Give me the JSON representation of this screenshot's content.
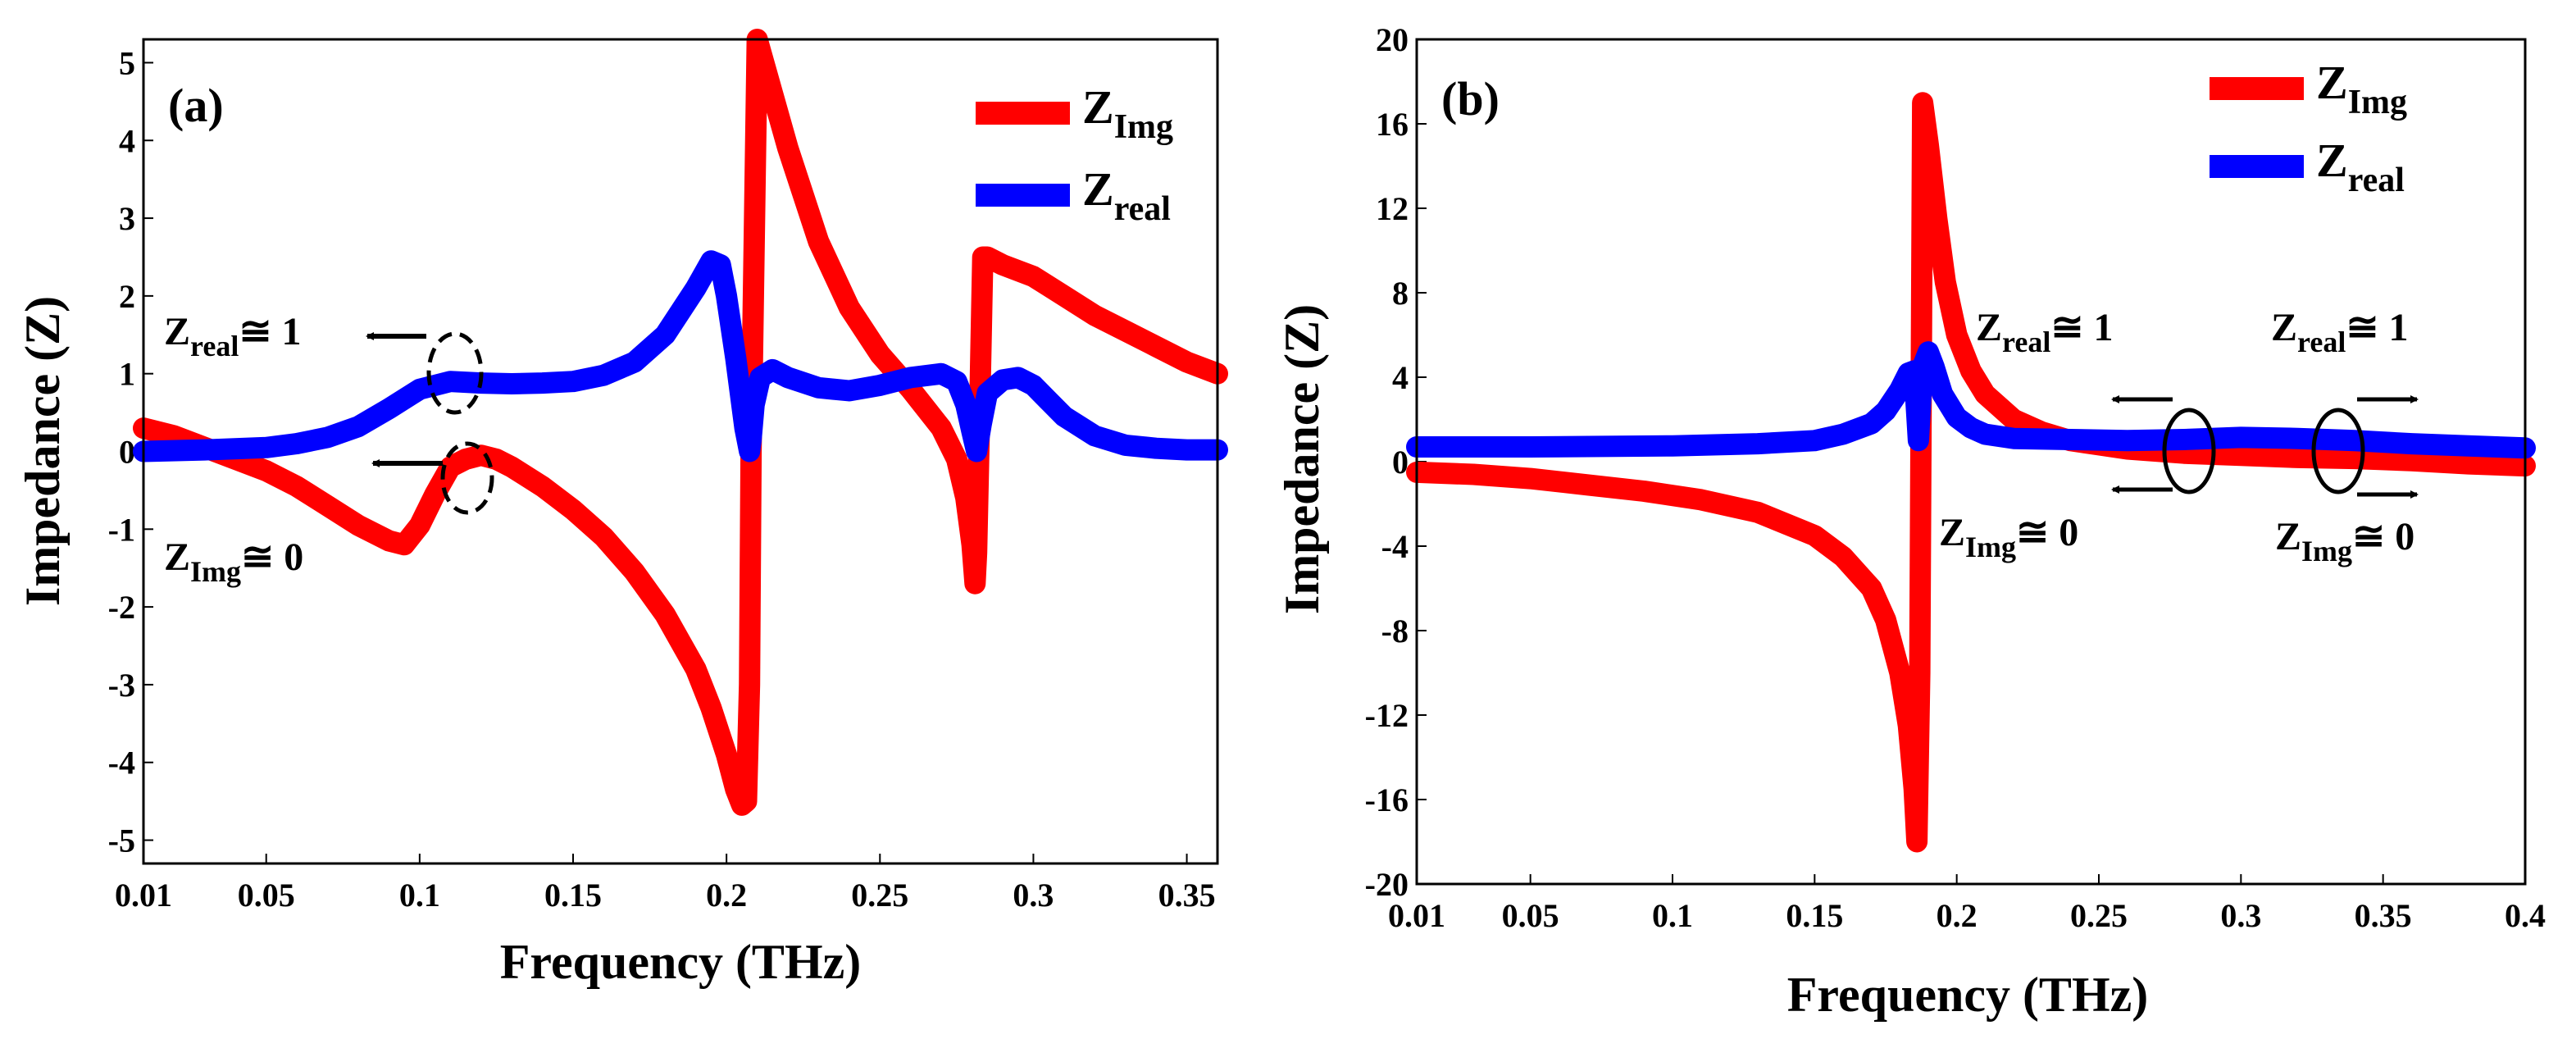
{
  "chart_data": [
    {
      "type": "line",
      "panel_label": "(a)",
      "xlabel": "Frequency (THz)",
      "ylabel": "Impedance (Z)",
      "xlim": [
        0.01,
        0.36
      ],
      "ylim": [
        -5.3,
        5.3
      ],
      "xticks": [
        "0.01",
        "0.05",
        "0.1",
        "0.15",
        "0.2",
        "0.25",
        "0.3",
        "0.35"
      ],
      "xtick_values": [
        0.01,
        0.05,
        0.1,
        0.15,
        0.2,
        0.25,
        0.3,
        0.35
      ],
      "yticks": [
        "5",
        "4",
        "3",
        "2",
        "1",
        "0",
        "-1",
        "-2",
        "-3",
        "-4",
        "-5"
      ],
      "ytick_values": [
        5,
        4,
        3,
        2,
        1,
        0,
        -1,
        -2,
        -3,
        -4,
        -5
      ],
      "legend_position": "top-right",
      "series": [
        {
          "name": "Z_Img",
          "legend_main": "Z",
          "legend_sub": "Img",
          "color": "#ff0000",
          "x": [
            0.01,
            0.02,
            0.03,
            0.04,
            0.05,
            0.06,
            0.07,
            0.08,
            0.09,
            0.095,
            0.1,
            0.105,
            0.11,
            0.115,
            0.12,
            0.125,
            0.13,
            0.14,
            0.15,
            0.16,
            0.17,
            0.18,
            0.19,
            0.195,
            0.2,
            0.203,
            0.205,
            0.2065,
            0.2075,
            0.208,
            0.21,
            0.215,
            0.22,
            0.23,
            0.24,
            0.25,
            0.26,
            0.27,
            0.275,
            0.278,
            0.28,
            0.281,
            0.2815,
            0.2825,
            0.2835,
            0.285,
            0.29,
            0.3,
            0.31,
            0.32,
            0.33,
            0.34,
            0.35,
            0.36
          ],
          "y": [
            0.3,
            0.2,
            0.05,
            -0.1,
            -0.25,
            -0.45,
            -0.7,
            -0.95,
            -1.15,
            -1.2,
            -0.95,
            -0.55,
            -0.2,
            -0.1,
            -0.05,
            -0.1,
            -0.2,
            -0.45,
            -0.75,
            -1.1,
            -1.55,
            -2.1,
            -2.8,
            -3.3,
            -3.9,
            -4.35,
            -4.55,
            -4.5,
            -3.0,
            0.0,
            5.3,
            4.6,
            3.9,
            2.7,
            1.85,
            1.25,
            0.8,
            0.3,
            -0.1,
            -0.6,
            -1.2,
            -1.7,
            -1.3,
            0.5,
            2.5,
            2.5,
            2.4,
            2.25,
            2.0,
            1.75,
            1.55,
            1.35,
            1.15,
            1.0
          ]
        },
        {
          "name": "Z_real",
          "legend_main": "Z",
          "legend_sub": "real",
          "color": "#0000ff",
          "x": [
            0.01,
            0.03,
            0.05,
            0.06,
            0.07,
            0.08,
            0.09,
            0.1,
            0.11,
            0.12,
            0.13,
            0.14,
            0.15,
            0.16,
            0.17,
            0.18,
            0.19,
            0.195,
            0.198,
            0.2,
            0.203,
            0.206,
            0.2075,
            0.208,
            0.209,
            0.211,
            0.215,
            0.22,
            0.23,
            0.24,
            0.25,
            0.26,
            0.27,
            0.275,
            0.278,
            0.28,
            0.2815,
            0.283,
            0.285,
            0.29,
            0.295,
            0.3,
            0.305,
            0.31,
            0.32,
            0.33,
            0.34,
            0.35,
            0.36
          ],
          "y": [
            0.0,
            0.02,
            0.05,
            0.1,
            0.18,
            0.32,
            0.55,
            0.8,
            0.9,
            0.88,
            0.87,
            0.88,
            0.9,
            0.98,
            1.15,
            1.5,
            2.1,
            2.45,
            2.4,
            2.0,
            1.2,
            0.3,
            0.0,
            0.15,
            0.6,
            0.95,
            1.05,
            0.95,
            0.82,
            0.78,
            0.85,
            0.95,
            1.0,
            0.9,
            0.6,
            0.25,
            0.0,
            0.35,
            0.75,
            0.92,
            0.95,
            0.85,
            0.65,
            0.45,
            0.2,
            0.08,
            0.04,
            0.02,
            0.02
          ]
        }
      ],
      "annotations": [
        {
          "main": "Z",
          "sub": "real",
          "rel": "≅ 1"
        },
        {
          "main": "Z",
          "sub": "Img",
          "rel": "≅ 0"
        }
      ]
    },
    {
      "type": "line",
      "panel_label": "(b)",
      "xlabel": "Frequency (THz)",
      "ylabel": "Impedance (Z)",
      "xlim": [
        0.01,
        0.4
      ],
      "ylim": [
        -20,
        20
      ],
      "xticks": [
        "0.01",
        "0.05",
        "0.1",
        "0.15",
        "0.2",
        "0.25",
        "0.3",
        "0.35",
        "0.4"
      ],
      "xtick_values": [
        0.01,
        0.05,
        0.1,
        0.15,
        0.2,
        0.25,
        0.3,
        0.35,
        0.4
      ],
      "yticks": [
        "20",
        "16",
        "12",
        "8",
        "4",
        "0",
        "-4",
        "-8",
        "-12",
        "-16",
        "-20"
      ],
      "ytick_values": [
        20,
        16,
        12,
        8,
        4,
        0,
        -4,
        -8,
        -12,
        -16,
        -20
      ],
      "legend_position": "top-right",
      "series": [
        {
          "name": "Z_Img",
          "legend_main": "Z",
          "legend_sub": "Img",
          "color": "#ff0000",
          "x": [
            0.01,
            0.03,
            0.05,
            0.07,
            0.09,
            0.11,
            0.13,
            0.15,
            0.16,
            0.17,
            0.175,
            0.18,
            0.183,
            0.185,
            0.186,
            0.187,
            0.188,
            0.19,
            0.193,
            0.196,
            0.2,
            0.205,
            0.21,
            0.22,
            0.23,
            0.24,
            0.25,
            0.26,
            0.28,
            0.3,
            0.32,
            0.34,
            0.36,
            0.38,
            0.4
          ],
          "y": [
            -0.5,
            -0.6,
            -0.8,
            -1.1,
            -1.4,
            -1.8,
            -2.4,
            -3.5,
            -4.5,
            -6.0,
            -7.5,
            -10.0,
            -12.5,
            -15.5,
            -18.0,
            -10.0,
            17.0,
            15.0,
            11.5,
            8.5,
            6.0,
            4.3,
            3.2,
            2.0,
            1.4,
            1.0,
            0.8,
            0.6,
            0.4,
            0.3,
            0.2,
            0.15,
            0.05,
            -0.1,
            -0.2
          ]
        },
        {
          "name": "Z_real",
          "legend_main": "Z",
          "legend_sub": "real",
          "color": "#0000ff",
          "x": [
            0.01,
            0.05,
            0.1,
            0.13,
            0.15,
            0.16,
            0.17,
            0.175,
            0.18,
            0.183,
            0.185,
            0.1865,
            0.188,
            0.19,
            0.192,
            0.195,
            0.2,
            0.205,
            0.21,
            0.22,
            0.24,
            0.26,
            0.28,
            0.3,
            0.32,
            0.34,
            0.36,
            0.38,
            0.4
          ],
          "y": [
            0.7,
            0.7,
            0.75,
            0.85,
            1.0,
            1.3,
            1.8,
            2.4,
            3.4,
            4.2,
            4.3,
            1.0,
            4.5,
            5.2,
            4.5,
            3.2,
            2.1,
            1.6,
            1.3,
            1.1,
            1.05,
            1.0,
            1.05,
            1.15,
            1.1,
            1.0,
            0.85,
            0.75,
            0.65
          ]
        }
      ],
      "annotations": [
        {
          "main": "Z",
          "sub": "real",
          "rel": "≅ 1"
        },
        {
          "main": "Z",
          "sub": "Img",
          "rel": "≅ 0"
        },
        {
          "main": "Z",
          "sub": "real",
          "rel": "≅ 1"
        },
        {
          "main": "Z",
          "sub": "Img",
          "rel": "≅ 0"
        }
      ]
    }
  ]
}
